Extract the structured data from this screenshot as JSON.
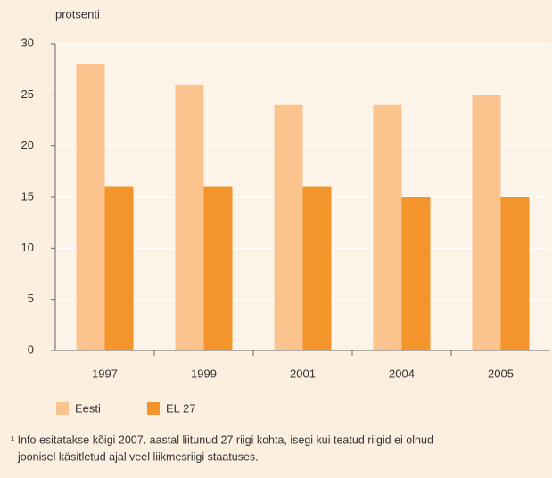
{
  "chart_data": {
    "type": "bar",
    "y_label": "protsenti",
    "categories": [
      "1997",
      "1999",
      "2001",
      "2004",
      "2005"
    ],
    "series": [
      {
        "name": "Eesti",
        "color": "#fbc48e",
        "values": [
          28,
          26,
          24,
          24,
          25
        ]
      },
      {
        "name": "EL 27",
        "color": "#f3952a",
        "values": [
          16,
          16,
          16,
          15,
          15
        ]
      }
    ],
    "ylim": [
      0,
      30
    ],
    "yticks": [
      0,
      5,
      10,
      15,
      20,
      25,
      30
    ],
    "grid": true,
    "legend": "bottom",
    "footnote": [
      "¹ Info esitatakse kõigi 2007. aastal liitunud 27 riigi kohta, isegi kui teatud riigid ei olnud",
      "joonisel käsitletud ajal veel liikmesriigi staatuses."
    ]
  }
}
